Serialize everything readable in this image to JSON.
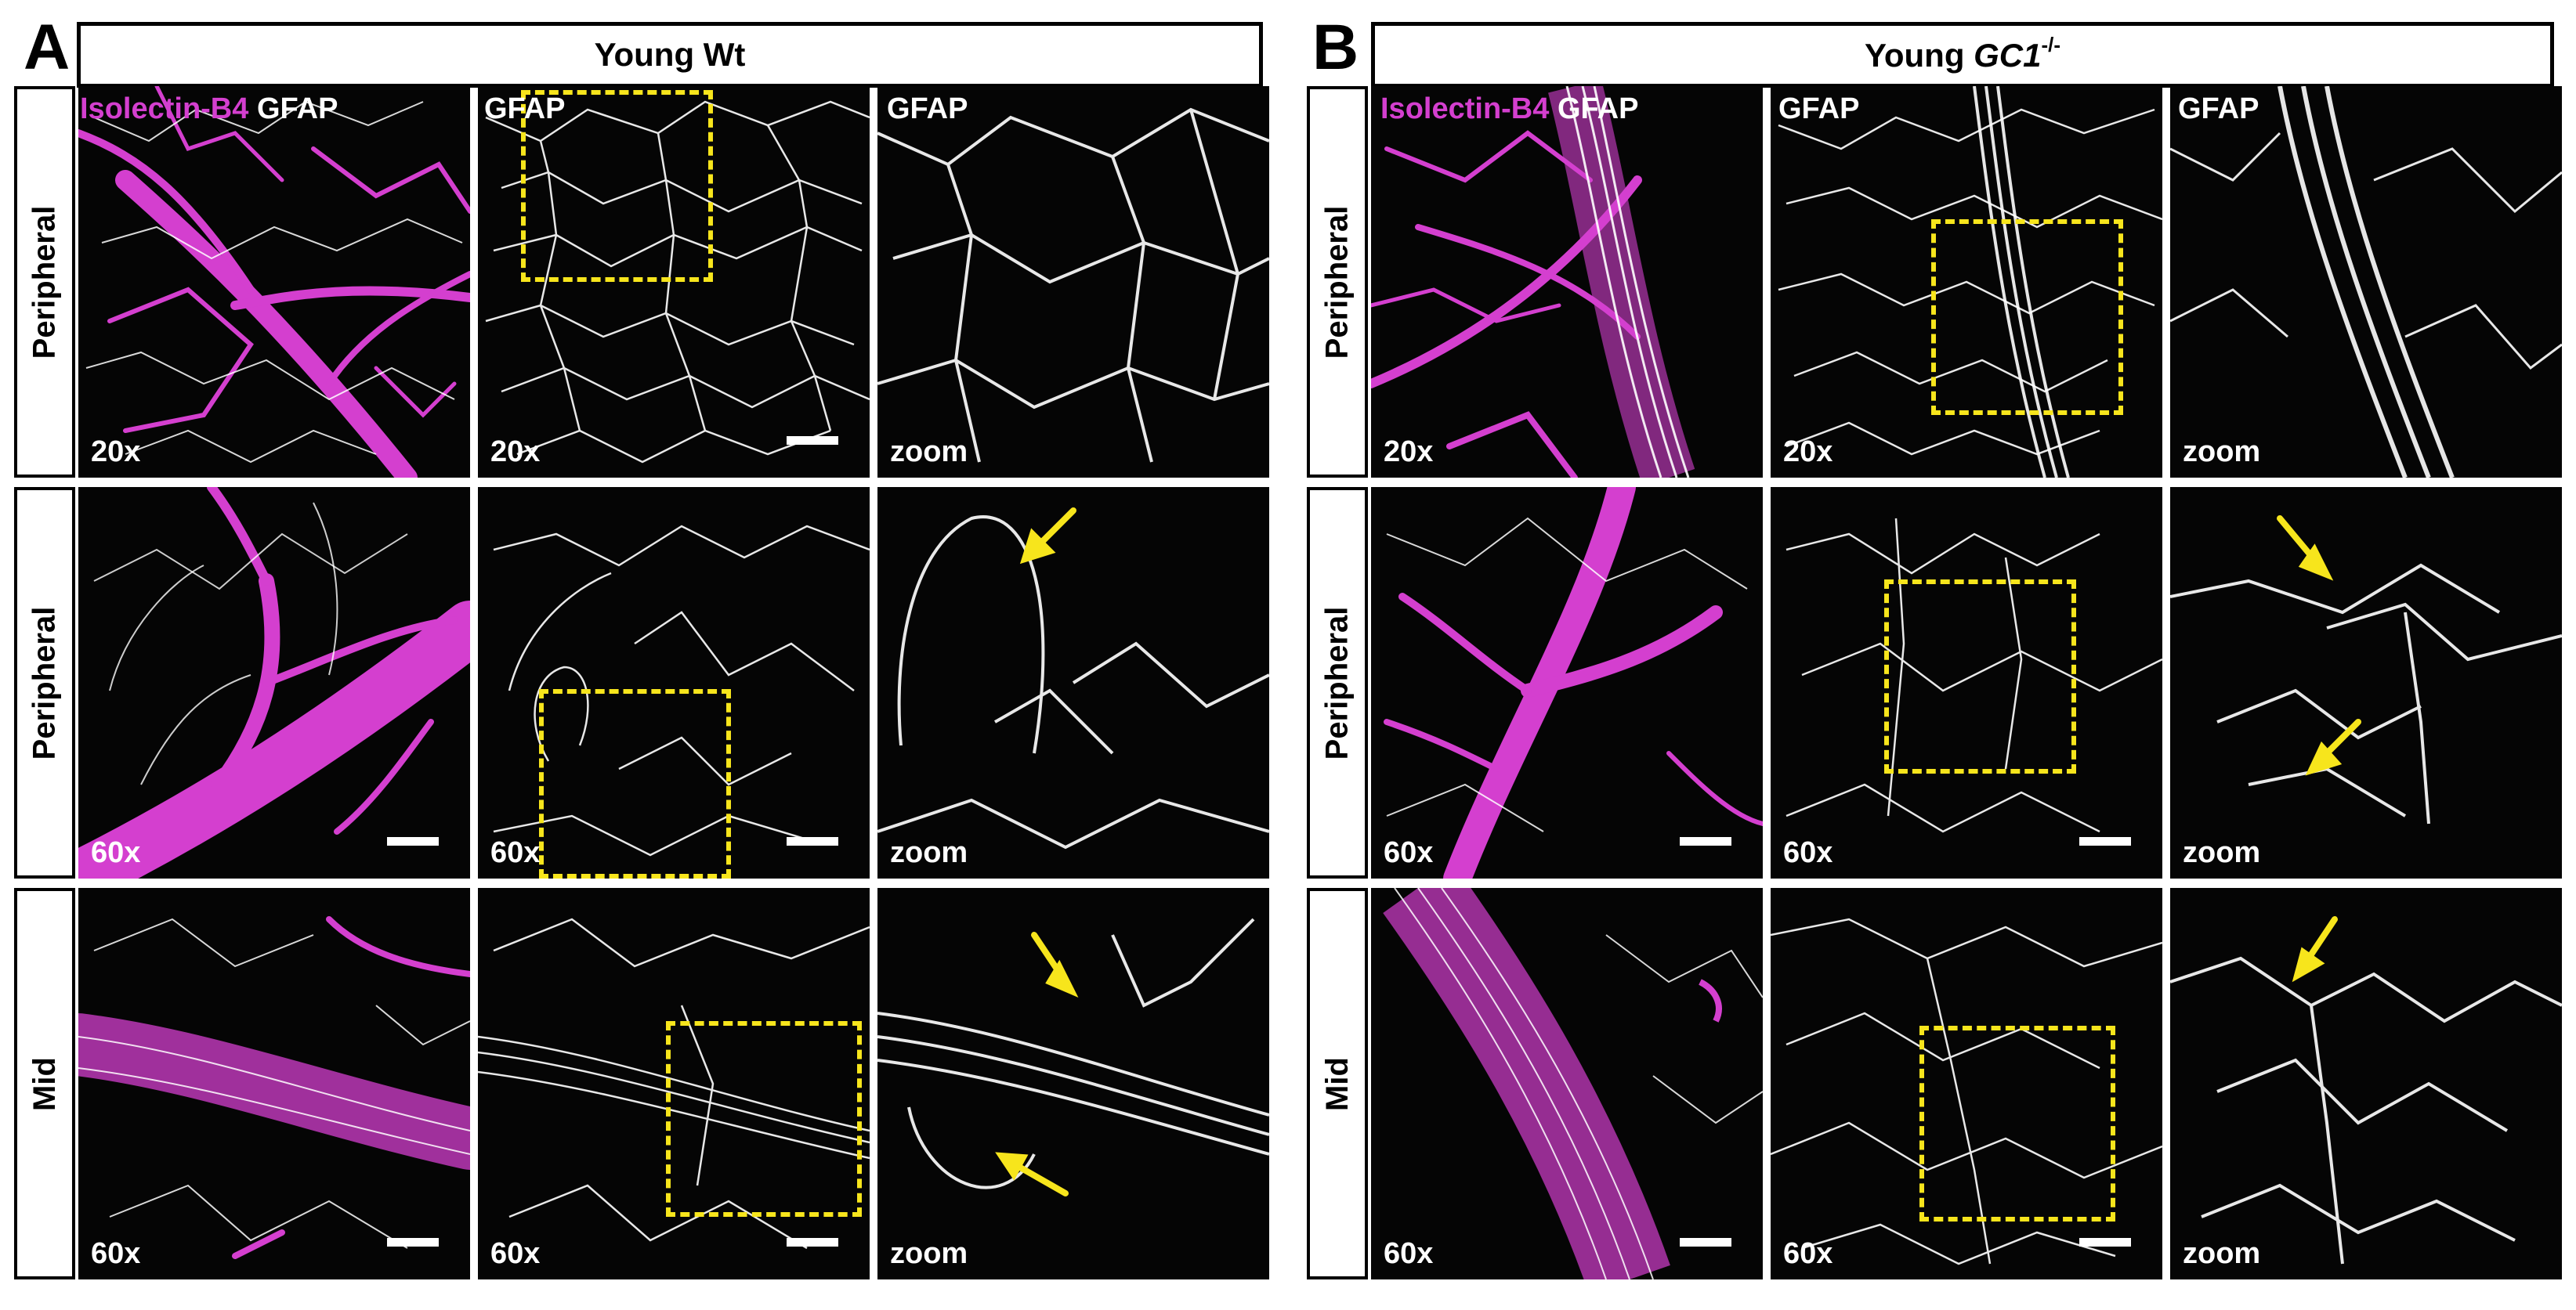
{
  "panels": [
    {
      "letter": "A",
      "title": "Young Wt",
      "title_italic": "",
      "title_sup": "",
      "column_labels": {
        "merge_magenta": "Isolectin-B4",
        "merge_white": " GFAP",
        "gfap": "GFAP",
        "zoom": "GFAP"
      },
      "rows": [
        {
          "label": "Peripheral",
          "mag": "20x",
          "zoom_label": "zoom"
        },
        {
          "label": "Peripheral",
          "mag": "60x",
          "zoom_label": "zoom"
        },
        {
          "label": "Mid",
          "mag": "60x",
          "zoom_label": "zoom"
        }
      ]
    },
    {
      "letter": "B",
      "title": "Young ",
      "title_italic": "GC1",
      "title_sup": "-/-",
      "column_labels": {
        "merge_magenta": "Isolectin-B4",
        "merge_white": " GFAP",
        "gfap": "GFAP",
        "zoom": "GFAP"
      },
      "rows": [
        {
          "label": "Peripheral",
          "mag": "20x",
          "zoom_label": "zoom"
        },
        {
          "label": "Peripheral",
          "mag": "60x",
          "zoom_label": "zoom"
        },
        {
          "label": "Mid",
          "mag": "60x",
          "zoom_label": "zoom"
        }
      ]
    }
  ],
  "colors": {
    "vessel_magenta": "#d43fcf",
    "astrocyte_white": "#e8e8e8",
    "inset_yellow": "#f7e51c",
    "arrow_yellow": "#f7e51c",
    "background": "#050505"
  }
}
